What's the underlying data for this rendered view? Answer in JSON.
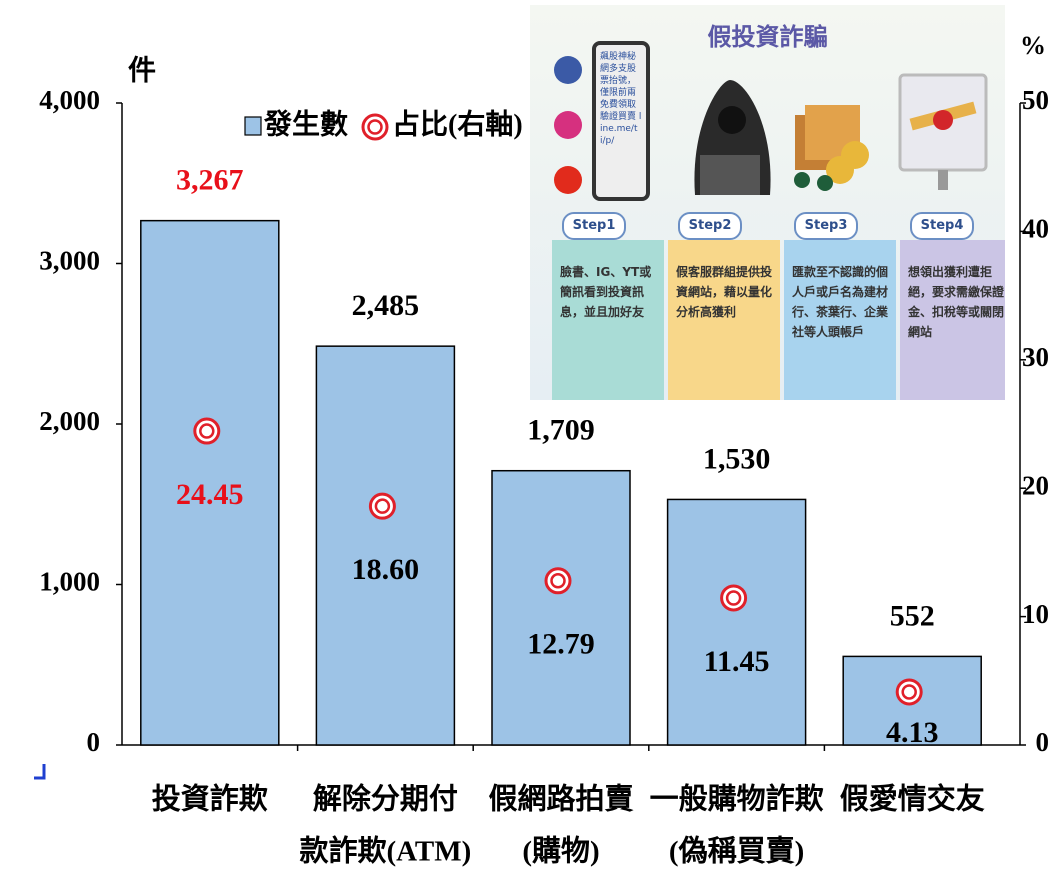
{
  "chart_data": {
    "type": "bar",
    "ylabel": "件",
    "y2label": "%",
    "categories": [
      [
        "投資詐欺"
      ],
      [
        "解除分期付",
        "款詐欺(ATM)"
      ],
      [
        "假網路拍賣",
        "(購物)"
      ],
      [
        "一般購物詐欺",
        "(偽稱買賣)"
      ],
      [
        "假愛情交友"
      ]
    ],
    "series": [
      {
        "name": "發生數",
        "color": "#9dc3e6",
        "values": [
          3267,
          2485,
          1709,
          1530,
          552
        ],
        "value_labels": [
          "3,267",
          "2,485",
          "1,709",
          "1,530",
          "552"
        ]
      },
      {
        "name": "占比(右軸)",
        "axis": "y2",
        "color": "#e0202a",
        "values": [
          24.45,
          18.6,
          12.79,
          11.45,
          4.13
        ],
        "value_labels": [
          "24.45",
          "18.60",
          "12.79",
          "11.45",
          "4.13"
        ]
      }
    ],
    "highlight": 0,
    "highlight_color": "#e8101a",
    "ylim": [
      0,
      4000
    ],
    "yticks": [
      0,
      {
        "value": 1000,
        "label": "1,000"
      },
      {
        "value": 2000,
        "label": "2,000"
      },
      {
        "value": 3000,
        "label": "3,000"
      },
      {
        "value": 4000,
        "label": "4,000"
      }
    ],
    "y2lim": [
      0,
      50
    ],
    "y2ticks": [
      0,
      10,
      20,
      30,
      40,
      50
    ]
  },
  "infographic": {
    "title": "假投資詐騙",
    "phone_text": "飆股神秘網多支股票抬號，僅限前兩免費領取驗證買賣 line.me/ti/p/",
    "steps": [
      {
        "label": "Step1",
        "text": "臉書、IG、YT或簡訊看到投資訊息，並且加好友",
        "color": "#a9dcd6"
      },
      {
        "label": "Step2",
        "text": "假客服群組提供投資網站，藉以量化分析高獲利",
        "color": "#f8d78a"
      },
      {
        "label": "Step3",
        "text": "匯款至不認識的個人戶或戶名為建材行、茶葉行、企業社等人頭帳戶",
        "color": "#a8d3ee"
      },
      {
        "label": "Step4",
        "text": "想領出獲利遭拒絕，要求需繳保證金、扣稅等或關閉網站",
        "color": "#cbc5e5"
      }
    ]
  }
}
